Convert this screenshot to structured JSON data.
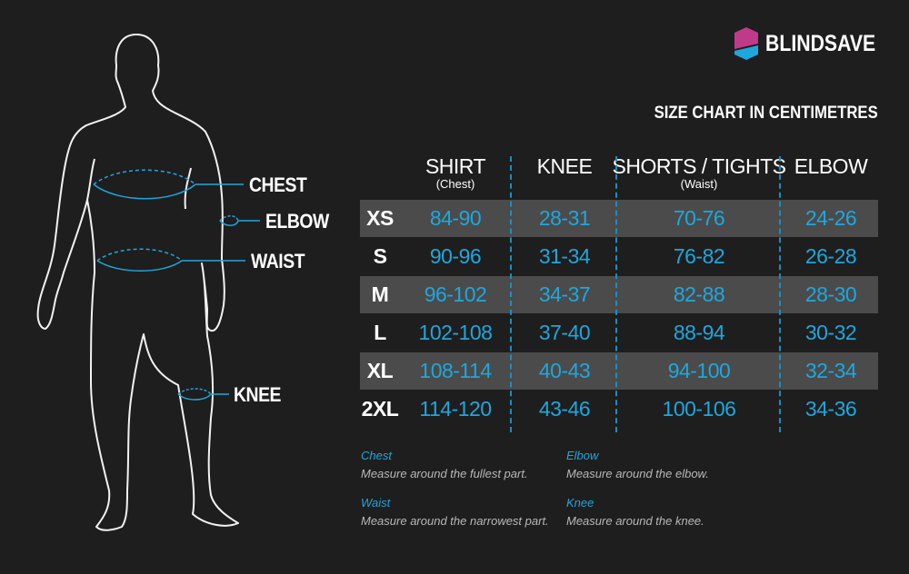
{
  "brand": {
    "name": "BLINDSAVE",
    "colors": {
      "top": "#c03a8a",
      "bottom": "#1ea7dd"
    }
  },
  "title": "SIZE CHART IN CENTIMETRES",
  "figure_labels": {
    "chest": "CHEST",
    "elbow": "ELBOW",
    "waist": "WAIST",
    "knee": "KNEE"
  },
  "accent_color": "#1ea7dd",
  "table": {
    "headers": [
      {
        "main": "SHIRT",
        "sub": "(Chest)"
      },
      {
        "main": "KNEE",
        "sub": ""
      },
      {
        "main": "SHORTS / TIGHTS",
        "sub": "(Waist)"
      },
      {
        "main": "ELBOW",
        "sub": ""
      }
    ],
    "rows": [
      {
        "size": "XS",
        "shirt": "84-90",
        "knee": "28-31",
        "shorts": "70-76",
        "elbow": "24-26"
      },
      {
        "size": "S",
        "shirt": "90-96",
        "knee": "31-34",
        "shorts": "76-82",
        "elbow": "26-28"
      },
      {
        "size": "M",
        "shirt": "96-102",
        "knee": "34-37",
        "shorts": "82-88",
        "elbow": "28-30"
      },
      {
        "size": "L",
        "shirt": "102-108",
        "knee": "37-40",
        "shorts": "88-94",
        "elbow": "30-32"
      },
      {
        "size": "XL",
        "shirt": "108-114",
        "knee": "40-43",
        "shorts": "94-100",
        "elbow": "32-34"
      },
      {
        "size": "2XL",
        "shirt": "114-120",
        "knee": "43-46",
        "shorts": "100-106",
        "elbow": "34-36"
      }
    ]
  },
  "notes": [
    {
      "title": "Chest",
      "text": "Measure around the fullest part."
    },
    {
      "title": "Waist",
      "text": "Measure around the narrowest part."
    },
    {
      "title": "Elbow",
      "text": "Measure around the elbow."
    },
    {
      "title": "Knee",
      "text": "Measure around the knee."
    }
  ]
}
